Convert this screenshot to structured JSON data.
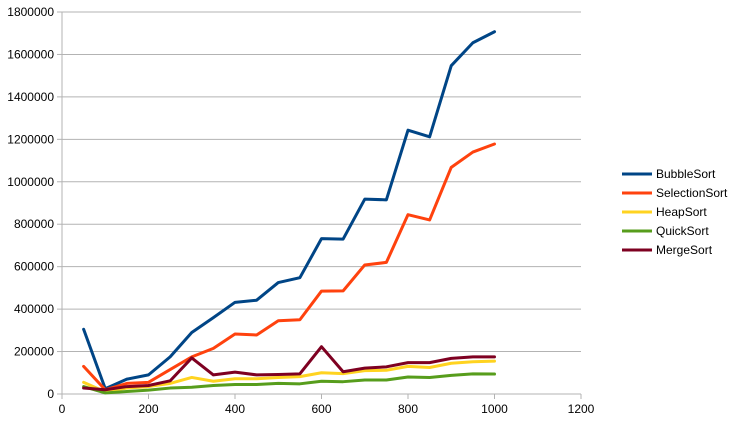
{
  "chart_data": {
    "type": "line",
    "title": "",
    "xlabel": "",
    "ylabel": "",
    "xlim": [
      0,
      1200
    ],
    "ylim": [
      0,
      1800000
    ],
    "x_ticks": [
      0,
      200,
      400,
      600,
      800,
      1000,
      1200
    ],
    "y_ticks": [
      0,
      200000,
      400000,
      600000,
      800000,
      1000000,
      1200000,
      1400000,
      1600000,
      1800000
    ],
    "grid": "horizontal",
    "legend_position": "right",
    "x": [
      50,
      100,
      150,
      200,
      250,
      300,
      350,
      400,
      450,
      500,
      550,
      600,
      650,
      700,
      750,
      800,
      850,
      900,
      950,
      1000
    ],
    "series": [
      {
        "name": "BubbleSort",
        "color": "#004586",
        "values": [
          305000,
          25000,
          70000,
          90000,
          175000,
          290000,
          360000,
          432000,
          442000,
          525000,
          548000,
          732000,
          730000,
          918000,
          915000,
          1243000,
          1212000,
          1547000,
          1655000,
          1707000
        ]
      },
      {
        "name": "SelectionSort",
        "color": "#ff420e",
        "values": [
          130000,
          20000,
          50000,
          55000,
          115000,
          175000,
          215000,
          283000,
          278000,
          345000,
          350000,
          485000,
          486000,
          608000,
          620000,
          845000,
          820000,
          1068000,
          1140000,
          1178000
        ]
      },
      {
        "name": "HeapSort",
        "color": "#ffd320",
        "values": [
          55000,
          10000,
          28000,
          35000,
          50000,
          78000,
          60000,
          72000,
          72000,
          78000,
          82000,
          100000,
          96000,
          110000,
          112000,
          130000,
          125000,
          145000,
          152000,
          155000
        ]
      },
      {
        "name": "QuickSort",
        "color": "#579d1c",
        "values": [
          35000,
          5000,
          12000,
          18000,
          28000,
          32000,
          40000,
          45000,
          45000,
          50000,
          48000,
          60000,
          58000,
          66000,
          66000,
          80000,
          78000,
          88000,
          95000,
          94000
        ]
      },
      {
        "name": "MergeSort",
        "color": "#7e0021",
        "values": [
          28000,
          20000,
          35000,
          40000,
          62000,
          170000,
          90000,
          103000,
          90000,
          92000,
          95000,
          223000,
          105000,
          122000,
          128000,
          148000,
          148000,
          168000,
          175000,
          175000
        ]
      }
    ]
  }
}
